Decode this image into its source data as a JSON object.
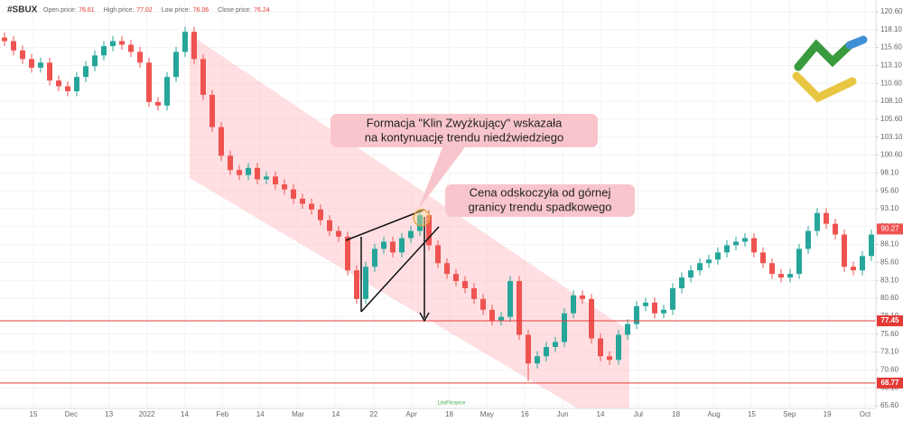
{
  "chart_data": {
    "type": "candlestick",
    "symbol": "#SBUX",
    "header": [
      {
        "label": "Open price:",
        "value": 76.61
      },
      {
        "label": "High price:",
        "value": 77.02
      },
      {
        "label": "Low price:",
        "value": 76.06
      },
      {
        "label": "Close price:",
        "value": 76.24
      }
    ],
    "categories": [
      "15",
      "Dec",
      "13",
      "2022",
      "14",
      "Feb",
      "14",
      "Mar",
      "14",
      "22",
      "Apr",
      "18",
      "May",
      "16",
      "Jun",
      "14",
      "Jul",
      "18",
      "Aug",
      "15",
      "Sep",
      "19",
      "Oct"
    ],
    "open": [
      117.0,
      116.5,
      115.2,
      114.0,
      112.8,
      113.5,
      111.0,
      110.2,
      109.5,
      111.5,
      113.0,
      114.5,
      115.8,
      116.5,
      116.0,
      115.0,
      113.5,
      108.0,
      107.5,
      111.5,
      115.0,
      117.8,
      114.0,
      109.0,
      104.5,
      100.5,
      98.5,
      97.8,
      98.8,
      97.2,
      97.6,
      96.5,
      95.8,
      94.5,
      93.8,
      93.0,
      91.5,
      90.0,
      89.2,
      84.5,
      80.5,
      85.0,
      87.5,
      88.5,
      87.0,
      89.0,
      90.0,
      92.2,
      88.0,
      85.5,
      84.0,
      83.0,
      82.0,
      80.5,
      79.0,
      77.5,
      78.0,
      83.0,
      75.5,
      71.5,
      72.5,
      73.8,
      74.5,
      78.5,
      81.0,
      80.5,
      75.0,
      72.5,
      72.0,
      75.5,
      77.0,
      79.5,
      80.0,
      78.5,
      79.0,
      82.0,
      83.5,
      84.5,
      85.5,
      86.0,
      87.0,
      88.0,
      88.5,
      89.0,
      87.0,
      85.5,
      84.0,
      83.5,
      84.0,
      87.5,
      90.0,
      92.5,
      91.0,
      89.5,
      85.0,
      84.5,
      86.5
    ],
    "high": [
      117.7,
      117.2,
      115.9,
      114.7,
      114.2,
      114.2,
      111.7,
      110.9,
      112.2,
      113.7,
      115.2,
      116.5,
      117.2,
      117.2,
      116.7,
      115.7,
      114.2,
      108.7,
      112.2,
      115.7,
      118.5,
      118.5,
      114.7,
      109.7,
      105.2,
      101.2,
      99.2,
      99.5,
      99.5,
      98.3,
      98.3,
      97.2,
      96.5,
      95.2,
      94.5,
      93.7,
      92.2,
      90.7,
      89.9,
      85.2,
      85.7,
      88.2,
      89.2,
      89.2,
      89.7,
      90.7,
      92.9,
      92.9,
      88.7,
      86.2,
      84.7,
      83.7,
      82.7,
      81.2,
      79.7,
      78.7,
      83.7,
      83.7,
      76.2,
      73.2,
      74.5,
      75.2,
      79.2,
      81.7,
      81.7,
      81.2,
      75.7,
      73.2,
      76.2,
      77.7,
      80.2,
      80.7,
      80.7,
      79.7,
      82.7,
      84.2,
      85.2,
      86.2,
      86.7,
      87.7,
      88.7,
      89.2,
      89.7,
      89.7,
      87.7,
      86.2,
      84.7,
      84.7,
      88.2,
      90.7,
      93.2,
      93.2,
      91.7,
      90.2,
      85.7,
      87.2,
      90.2
    ],
    "low": [
      115.8,
      114.5,
      113.3,
      112.1,
      112.1,
      110.3,
      109.5,
      108.8,
      108.8,
      110.8,
      112.3,
      113.8,
      115.1,
      115.3,
      114.3,
      112.8,
      107.3,
      106.8,
      106.8,
      110.8,
      114.3,
      113.3,
      108.3,
      103.8,
      99.8,
      97.8,
      97.1,
      97.1,
      96.5,
      96.5,
      95.8,
      95.1,
      93.8,
      93.1,
      92.3,
      90.8,
      89.3,
      88.5,
      83.8,
      79.8,
      79.8,
      84.3,
      86.8,
      86.3,
      86.3,
      88.3,
      89.3,
      87.3,
      84.8,
      83.3,
      82.3,
      81.3,
      79.8,
      78.3,
      76.8,
      76.8,
      77.3,
      74.8,
      69.0,
      70.8,
      71.8,
      73.1,
      73.8,
      77.8,
      79.8,
      74.3,
      71.8,
      71.3,
      71.3,
      74.8,
      76.3,
      78.8,
      77.8,
      77.8,
      78.3,
      81.3,
      82.8,
      83.8,
      84.8,
      85.3,
      86.3,
      87.3,
      87.8,
      86.3,
      84.8,
      83.3,
      82.8,
      82.8,
      83.3,
      86.8,
      89.3,
      90.3,
      88.8,
      84.3,
      83.8,
      83.8,
      85.8
    ],
    "close": [
      116.5,
      115.2,
      114.0,
      112.8,
      113.5,
      111.0,
      110.2,
      109.5,
      111.5,
      113.0,
      114.5,
      115.8,
      116.5,
      116.0,
      115.0,
      113.5,
      108.0,
      107.5,
      111.5,
      115.0,
      117.8,
      114.0,
      109.0,
      104.5,
      100.5,
      98.5,
      97.8,
      98.8,
      97.2,
      97.6,
      96.5,
      95.8,
      94.5,
      93.8,
      93.0,
      91.5,
      90.0,
      89.2,
      84.5,
      80.5,
      85.0,
      87.5,
      88.5,
      87.0,
      89.0,
      90.0,
      92.2,
      88.0,
      85.5,
      84.0,
      83.0,
      82.0,
      80.5,
      79.0,
      77.5,
      78.0,
      83.0,
      75.5,
      71.5,
      72.5,
      73.8,
      74.5,
      78.5,
      81.0,
      80.5,
      75.0,
      72.5,
      72.0,
      75.5,
      77.0,
      79.5,
      80.0,
      78.5,
      79.0,
      82.0,
      83.5,
      84.5,
      85.5,
      86.0,
      87.0,
      88.0,
      88.5,
      89.0,
      87.0,
      85.5,
      84.0,
      83.5,
      84.0,
      87.5,
      90.0,
      92.5,
      91.0,
      89.5,
      85.0,
      84.5,
      86.5,
      89.5
    ],
    "up_color": "#26a69a",
    "down_color": "#ef5350",
    "ylim": [
      65.22,
      122.24
    ],
    "yticks": [
      {
        "value": 120.6,
        "label": "120.60"
      },
      {
        "value": 118.1,
        "label": "118.10"
      },
      {
        "value": 115.6,
        "label": "115.60"
      },
      {
        "value": 113.1,
        "label": "113.10"
      },
      {
        "value": 110.6,
        "label": "110.60"
      },
      {
        "value": 108.1,
        "label": "108.10"
      },
      {
        "value": 105.6,
        "label": "105.60"
      },
      {
        "value": 103.1,
        "label": "103.10"
      },
      {
        "value": 100.6,
        "label": "100.60"
      },
      {
        "value": 98.1,
        "label": "98.10"
      },
      {
        "value": 95.6,
        "label": "95.60"
      },
      {
        "value": 93.1,
        "label": "93.10"
      },
      {
        "value": 90.6,
        "label": "90.60"
      },
      {
        "value": 88.1,
        "label": "88.10"
      },
      {
        "value": 85.6,
        "label": "85.60"
      },
      {
        "value": 83.1,
        "label": "83.10"
      },
      {
        "value": 80.6,
        "label": "80.60"
      },
      {
        "value": 78.1,
        "label": "78.10"
      },
      {
        "value": 75.6,
        "label": "75.60"
      },
      {
        "value": 73.1,
        "label": "73.10"
      },
      {
        "value": 70.6,
        "label": "70.60"
      },
      {
        "value": 68.1,
        "label": "68.10"
      },
      {
        "value": 65.6,
        "label": "65.60"
      }
    ],
    "grid": true,
    "current_price": 90.27,
    "price_lines": [
      {
        "value": 77.45,
        "color": "#e53935"
      },
      {
        "value": 68.77,
        "color": "#e53935"
      }
    ],
    "annotations": [
      [
        "Formacja \"Klin Zwyżkujący\" wskazała",
        "na kontynuację trendu niedźwiedziego"
      ],
      [
        "Cena odskoczyła od górnej",
        "granicy trendu spadkowego"
      ]
    ],
    "watermark": "LiteFinance"
  }
}
